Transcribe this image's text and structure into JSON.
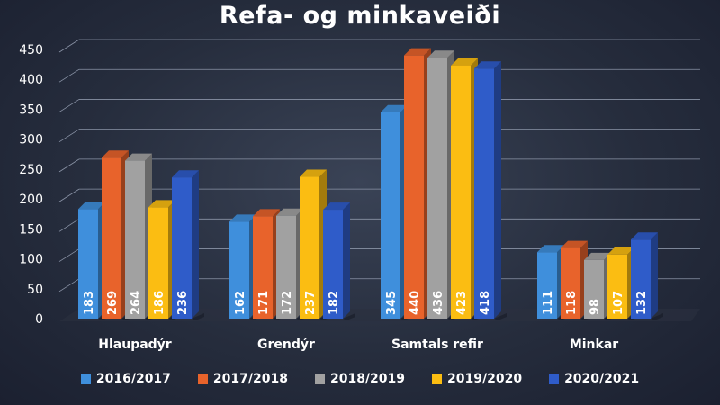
{
  "chart_data": {
    "type": "bar",
    "title": "Refa- og minkaveiði",
    "categories": [
      "Hlaupadýr",
      "Grendýr",
      "Samtals refir",
      "Minkar"
    ],
    "series": [
      {
        "name": "2016/2017",
        "color": "#3f8fdc",
        "values": [
          183,
          162,
          345,
          111
        ]
      },
      {
        "name": "2017/2018",
        "color": "#e8632b",
        "values": [
          269,
          171,
          440,
          118
        ]
      },
      {
        "name": "2018/2019",
        "color": "#a1a1a1",
        "values": [
          264,
          172,
          436,
          98
        ]
      },
      {
        "name": "2019/2020",
        "color": "#fbbd12",
        "values": [
          186,
          237,
          423,
          107
        ]
      },
      {
        "name": "2020/2021",
        "color": "#2f5cc9",
        "values": [
          236,
          182,
          418,
          132
        ]
      }
    ],
    "yticks": [
      "0",
      "50",
      "100",
      "150",
      "200",
      "250",
      "300",
      "350",
      "400",
      "450"
    ],
    "ylim": [
      0,
      450
    ],
    "grid": true,
    "legend_position": "bottom"
  }
}
